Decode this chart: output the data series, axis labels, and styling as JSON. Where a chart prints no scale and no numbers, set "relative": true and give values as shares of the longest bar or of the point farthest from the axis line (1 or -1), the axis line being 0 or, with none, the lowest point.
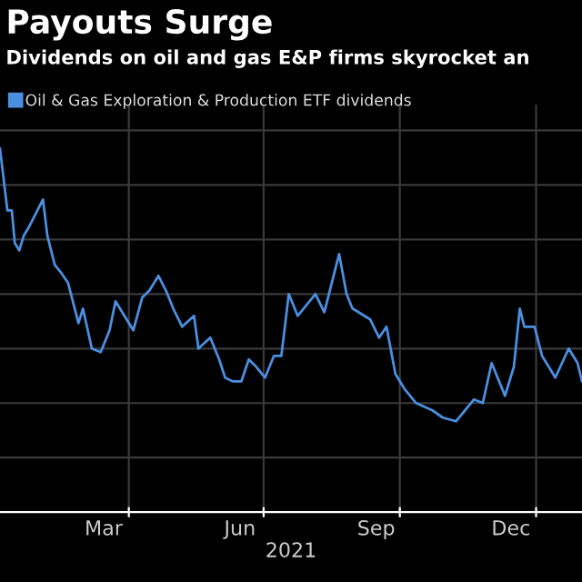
{
  "chart_data": {
    "type": "line",
    "title": "Payouts Surge",
    "subtitle": "Dividends on oil and gas E&P firms skyrocket an",
    "xlabel": "2021",
    "relative": true,
    "grid": true,
    "legend": "top left",
    "xlim": [
      "2021-01-04",
      "2022-02-01"
    ],
    "xticks": [
      {
        "value": "2021-03-15",
        "label": "Mar"
      },
      {
        "value": "2021-04-01",
        "label": null
      },
      {
        "value": "2021-06-15",
        "label": "Jun"
      },
      {
        "value": "2021-07-01",
        "label": null
      },
      {
        "value": "2021-09-15",
        "label": "Sep"
      },
      {
        "value": "2021-10-01",
        "label": null
      },
      {
        "value": "2021-12-15",
        "label": "Dec"
      },
      {
        "value": "2022-01-01",
        "label": null
      }
    ],
    "series": [
      {
        "name": "Oil & Gas Exploration & Production ETF dividends",
        "color": "#4a8fe0",
        "x": [
          "2021-01-04",
          "2021-01-09",
          "2021-01-12",
          "2021-01-14",
          "2021-01-17",
          "2021-01-20",
          "2021-01-23",
          "2021-01-28",
          "2021-02-02",
          "2021-02-05",
          "2021-02-10",
          "2021-02-14",
          "2021-02-19",
          "2021-02-26",
          "2021-03-01",
          "2021-03-07",
          "2021-03-13",
          "2021-03-19",
          "2021-03-23",
          "2021-03-29",
          "2021-04-04",
          "2021-04-10",
          "2021-04-15",
          "2021-04-21",
          "2021-04-26",
          "2021-05-01",
          "2021-05-07",
          "2021-05-15",
          "2021-05-18",
          "2021-05-26",
          "2021-06-01",
          "2021-06-05",
          "2021-06-10",
          "2021-06-16",
          "2021-06-21",
          "2021-06-26",
          "2021-07-02",
          "2021-07-08",
          "2021-07-13",
          "2021-07-18",
          "2021-07-24",
          "2021-08-05",
          "2021-08-11",
          "2021-08-21",
          "2021-08-26",
          "2021-08-30",
          "2021-09-11",
          "2021-09-17",
          "2021-09-22",
          "2021-09-28",
          "2021-10-04",
          "2021-10-12",
          "2021-10-23",
          "2021-10-30",
          "2021-11-08",
          "2021-11-14",
          "2021-11-20",
          "2021-11-26",
          "2021-12-02",
          "2021-12-11",
          "2021-12-17",
          "2021-12-21",
          "2021-12-24",
          "2021-12-31",
          "2022-01-05",
          "2022-01-14",
          "2022-01-23",
          "2022-01-29",
          "2022-02-01"
        ],
        "values": [
          1,
          0.83,
          0.83,
          0.74,
          0.72,
          0.76,
          0.78,
          0.82,
          0.86,
          0.76,
          0.68,
          0.66,
          0.63,
          0.52,
          0.56,
          0.45,
          0.44,
          0.5,
          0.58,
          0.54,
          0.5,
          0.59,
          0.61,
          0.65,
          0.61,
          0.56,
          0.51,
          0.54,
          0.45,
          0.48,
          0.42,
          0.37,
          0.36,
          0.36,
          0.42,
          0.4,
          0.37,
          0.43,
          0.43,
          0.6,
          0.54,
          0.6,
          0.55,
          0.71,
          0.6,
          0.56,
          0.53,
          0.48,
          0.51,
          0.38,
          0.34,
          0.3,
          0.28,
          0.26,
          0.25,
          0.28,
          0.31,
          0.3,
          0.41,
          0.32,
          0.4,
          0.56,
          0.51,
          0.51,
          0.43,
          0.37,
          0.45,
          0.41,
          0.36
        ]
      }
    ]
  }
}
